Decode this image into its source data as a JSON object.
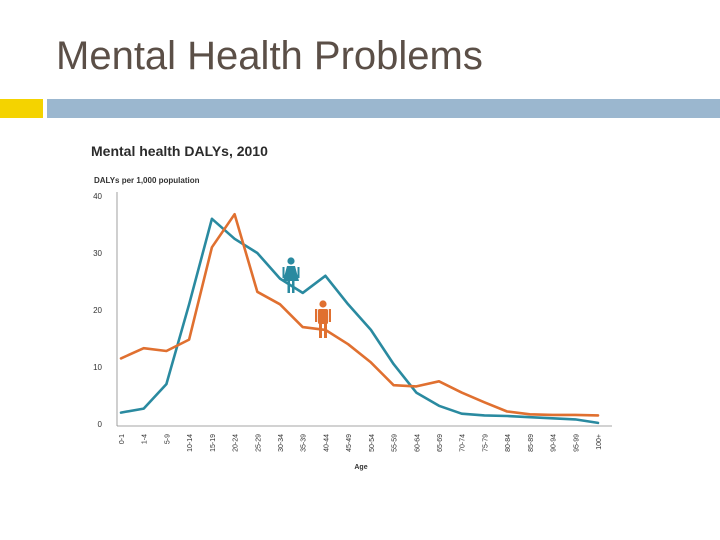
{
  "slide": {
    "title": "Mental Health Problems",
    "colors": {
      "title": "#5b4f47",
      "accent_square": "#f4d300",
      "accent_bar": "#9bb7cf"
    }
  },
  "chart_data": {
    "type": "line",
    "title": "Mental health DALYs, 2010",
    "ylabel": "DALYs per 1,000 population",
    "xlabel": "Age",
    "ylim": [
      0,
      40
    ],
    "yticks": [
      0,
      10,
      20,
      30,
      40
    ],
    "grid": false,
    "legend": "icons next to lines (female, male)",
    "categories": [
      "0-1",
      "1-4",
      "5-9",
      "10-14",
      "15-19",
      "20-24",
      "25-29",
      "30-34",
      "35-39",
      "40-44",
      "45-49",
      "50-54",
      "55-59",
      "60-64",
      "65-69",
      "70-74",
      "75-79",
      "80-84",
      "85-89",
      "90-94",
      "95-99",
      "100+"
    ],
    "series": [
      {
        "icon": "female-icon",
        "color": "#2a8aa0",
        "values": [
          2.0,
          2.7,
          7.0,
          21.0,
          36.0,
          32.5,
          30.0,
          25.5,
          23.0,
          26.0,
          21.0,
          16.5,
          10.5,
          5.5,
          3.2,
          1.8,
          1.5,
          1.4,
          1.2,
          1.0,
          0.8,
          0.2
        ]
      },
      {
        "icon": "male-icon",
        "color": "#e07030",
        "values": [
          11.5,
          13.3,
          12.8,
          14.8,
          31.0,
          36.8,
          23.2,
          21.0,
          17.0,
          16.5,
          14.0,
          10.8,
          6.8,
          6.6,
          7.5,
          5.5,
          3.8,
          2.2,
          1.7,
          1.6,
          1.6,
          1.5
        ]
      }
    ]
  }
}
